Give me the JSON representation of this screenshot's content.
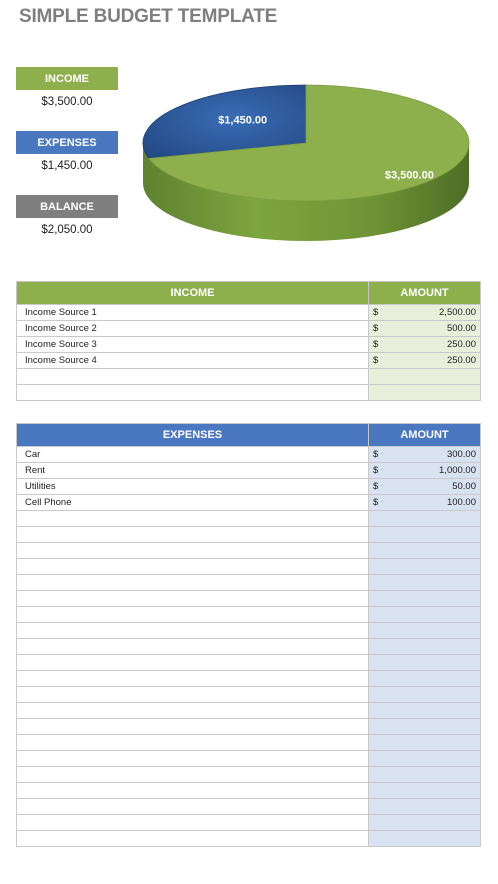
{
  "title": "SIMPLE BUDGET TEMPLATE",
  "summary": {
    "income_label": "INCOME",
    "income_value": "$3,500.00",
    "expenses_label": "EXPENSES",
    "expenses_value": "$1,450.00",
    "balance_label": "BALANCE",
    "balance_value": "$2,050.00"
  },
  "colors": {
    "income": "#8db04d",
    "expenses": "#4a78c0",
    "balance": "#7f7f7f"
  },
  "chart_data": {
    "type": "pie",
    "slices": [
      {
        "label": "$1,450.00",
        "value": 1450,
        "color": "#2f5b9c"
      },
      {
        "label": "$3,500.00",
        "value": 3500,
        "color": "#8db04d"
      }
    ]
  },
  "income_table": {
    "header_label": "INCOME",
    "header_amount": "AMOUNT",
    "rows": [
      {
        "label": "Income Source 1",
        "currency": "$",
        "amount": "2,500.00"
      },
      {
        "label": "Income Source 2",
        "currency": "$",
        "amount": "500.00"
      },
      {
        "label": "Income Source 3",
        "currency": "$",
        "amount": "250.00"
      },
      {
        "label": "Income Source 4",
        "currency": "$",
        "amount": "250.00"
      },
      {
        "label": "",
        "currency": "",
        "amount": ""
      },
      {
        "label": "",
        "currency": "",
        "amount": ""
      }
    ]
  },
  "expense_table": {
    "header_label": "EXPENSES",
    "header_amount": "AMOUNT",
    "rows": [
      {
        "label": "Car",
        "currency": "$",
        "amount": "300.00"
      },
      {
        "label": "Rent",
        "currency": "$",
        "amount": "1,000.00"
      },
      {
        "label": "Utilities",
        "currency": "$",
        "amount": "50.00"
      },
      {
        "label": "Cell Phone",
        "currency": "$",
        "amount": "100.00"
      },
      {
        "label": "",
        "currency": "",
        "amount": ""
      },
      {
        "label": "",
        "currency": "",
        "amount": ""
      },
      {
        "label": "",
        "currency": "",
        "amount": ""
      },
      {
        "label": "",
        "currency": "",
        "amount": ""
      },
      {
        "label": "",
        "currency": "",
        "amount": ""
      },
      {
        "label": "",
        "currency": "",
        "amount": ""
      },
      {
        "label": "",
        "currency": "",
        "amount": ""
      },
      {
        "label": "",
        "currency": "",
        "amount": ""
      },
      {
        "label": "",
        "currency": "",
        "amount": ""
      },
      {
        "label": "",
        "currency": "",
        "amount": ""
      },
      {
        "label": "",
        "currency": "",
        "amount": ""
      },
      {
        "label": "",
        "currency": "",
        "amount": ""
      },
      {
        "label": "",
        "currency": "",
        "amount": ""
      },
      {
        "label": "",
        "currency": "",
        "amount": ""
      },
      {
        "label": "",
        "currency": "",
        "amount": ""
      },
      {
        "label": "",
        "currency": "",
        "amount": ""
      },
      {
        "label": "",
        "currency": "",
        "amount": ""
      },
      {
        "label": "",
        "currency": "",
        "amount": ""
      },
      {
        "label": "",
        "currency": "",
        "amount": ""
      },
      {
        "label": "",
        "currency": "",
        "amount": ""
      },
      {
        "label": "",
        "currency": "",
        "amount": ""
      }
    ]
  }
}
